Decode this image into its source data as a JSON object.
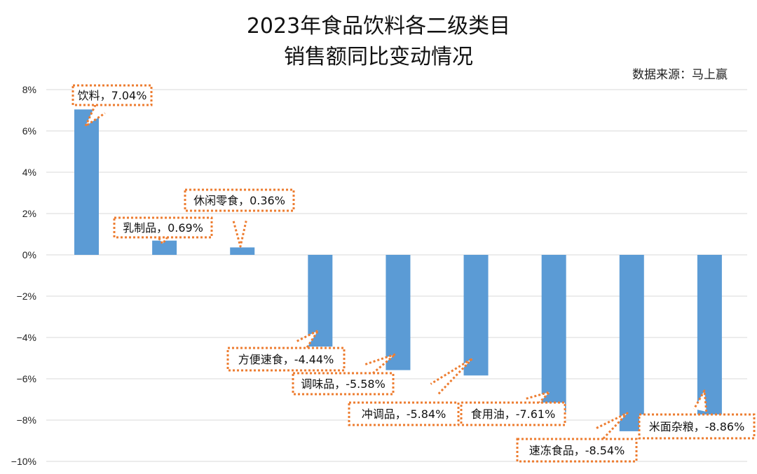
{
  "chart_data": {
    "type": "bar",
    "title_lines": [
      "2023年食品饮料各二级类目",
      "销售额同比变动情况"
    ],
    "source": "数据来源：马上赢",
    "categories": [
      "饮料",
      "乳制品",
      "休闲零食",
      "方便速食",
      "调味品",
      "冲调品",
      "食用油",
      "速冻食品",
      "米面杂粮"
    ],
    "values": [
      7.04,
      0.69,
      0.36,
      -4.44,
      -5.58,
      -5.84,
      -7.61,
      -8.54,
      -8.86
    ],
    "labels": [
      "饮料，7.04%",
      "乳制品，0.69%",
      "休闲零食，0.36%",
      "方便速食，-4.44%",
      "调味品，-5.58%",
      "冲调品，-5.84%",
      "食用油，-7.61%",
      "速冻食品，-8.54%",
      "米面杂粮，-8.86%"
    ],
    "ylim": [
      -10,
      8
    ],
    "yticks": [
      8,
      6,
      4,
      2,
      0,
      -2,
      -4,
      -6,
      -8,
      -10
    ],
    "ytick_labels": [
      "8%",
      "6%",
      "4%",
      "2%",
      "0%",
      "−2%",
      "−4%",
      "−6%",
      "−8%",
      "−10%"
    ],
    "grid": true,
    "bar_color": "#5b9bd5",
    "grid_color": "#d9d9d9",
    "callout_border_color": "#ed7d31"
  }
}
